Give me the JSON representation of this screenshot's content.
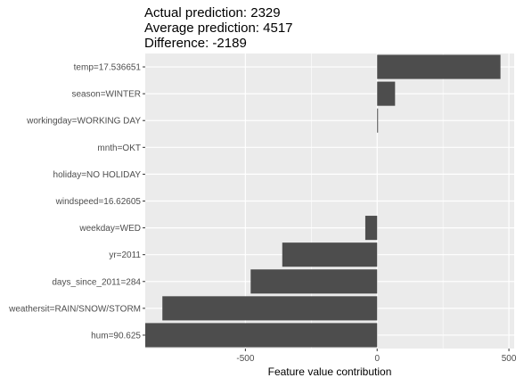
{
  "chart_data": {
    "type": "bar",
    "orientation": "horizontal",
    "title_lines": [
      "Actual prediction: 2329",
      "Average prediction: 4517",
      "Difference: -2189"
    ],
    "xlabel": "Feature value contribution",
    "ylabel": "",
    "xlim": [
      -880,
      520
    ],
    "xticks": [
      -500,
      0,
      500
    ],
    "grid": true,
    "legend": "none",
    "colors": {
      "panel": "#ebebeb",
      "grid": "#ffffff",
      "bar": "#4d4d4d"
    },
    "categories": [
      "temp=17.536651",
      "season=WINTER",
      "workingday=WORKING DAY",
      "mnth=OKT",
      "holiday=NO HOLIDAY",
      "windspeed=16.62605",
      "weekday=WED",
      "yr=2011",
      "days_since_2011=284",
      "weathersit=RAIN/SNOW/STORM",
      "hum=90.625"
    ],
    "values": [
      468,
      68,
      3,
      0,
      0,
      0,
      -45,
      -360,
      -480,
      -815,
      -880
    ]
  }
}
